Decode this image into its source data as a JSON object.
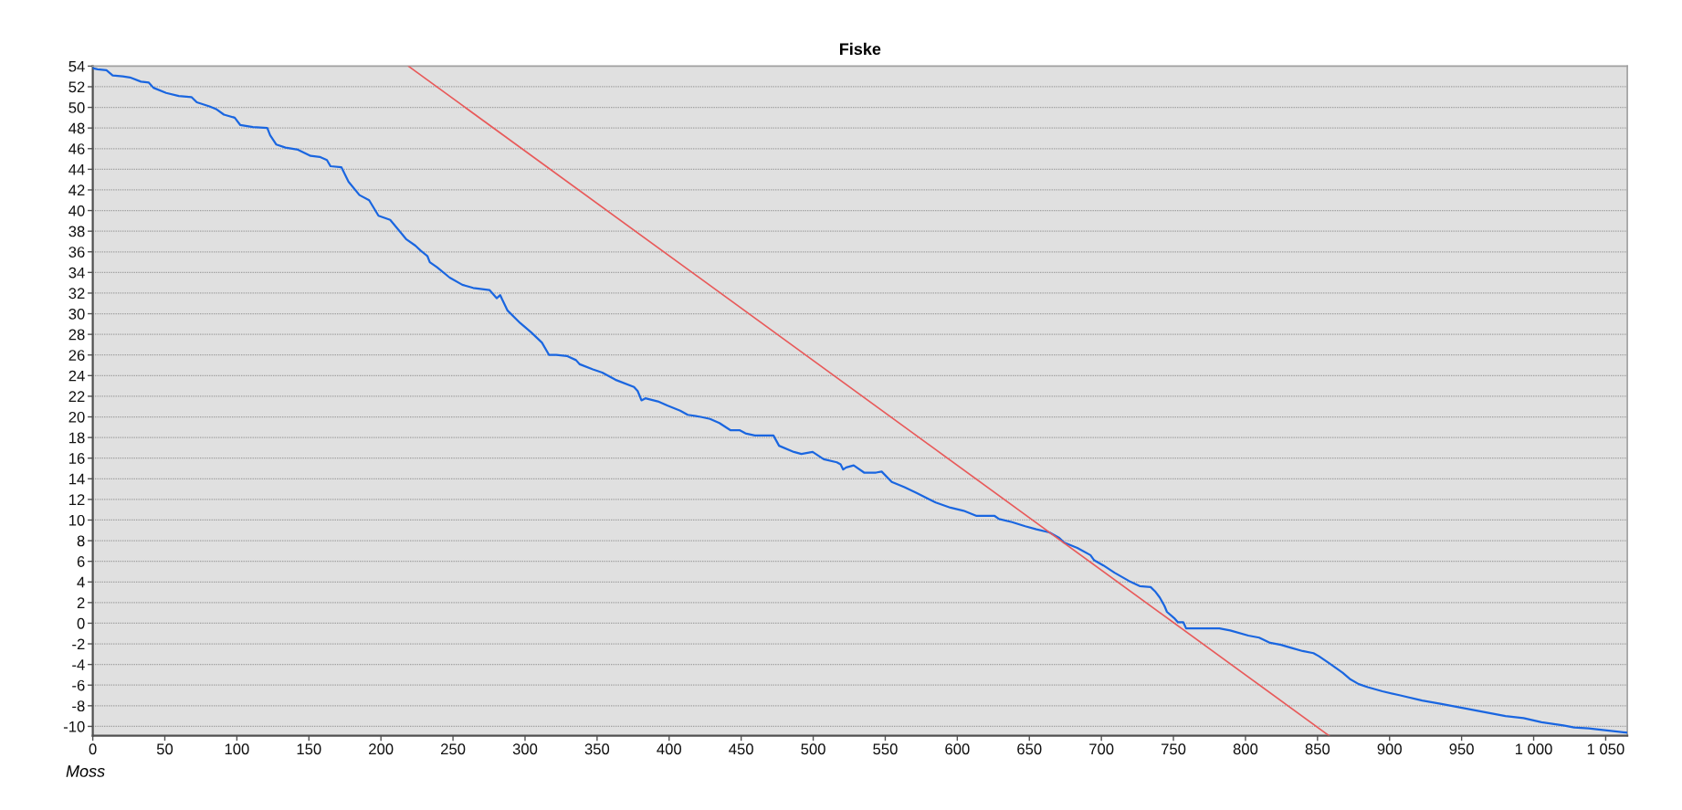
{
  "chart_data": {
    "type": "line",
    "title": "Fiske",
    "xlabel": "Moss",
    "xlim": [
      0,
      1065
    ],
    "xticks": [
      0,
      50,
      100,
      150,
      200,
      250,
      300,
      350,
      400,
      450,
      500,
      550,
      600,
      650,
      700,
      750,
      800,
      850,
      900,
      950,
      {
        "value": 1000,
        "label": "1 000"
      },
      {
        "value": 1050,
        "label": "1 050"
      }
    ],
    "ylim": [
      -10.9,
      54
    ],
    "yticks": [
      -10,
      -8,
      -6,
      -4,
      -2,
      0,
      2,
      4,
      6,
      8,
      10,
      12,
      14,
      16,
      18,
      20,
      22,
      24,
      26,
      28,
      30,
      32,
      34,
      36,
      38,
      40,
      42,
      44,
      46,
      48,
      50,
      52,
      54
    ],
    "grid": "y",
    "series": [
      {
        "color": "#1a66e0",
        "x": [
          0,
          3.3,
          9.5,
          13.8,
          20.8,
          25.8,
          33.4,
          38.9,
          42.1,
          50.9,
          59.7,
          68.5,
          72.2,
          81,
          86,
          91,
          98.5,
          102.3,
          111.1,
          121.1,
          123.1,
          127.4,
          133.7,
          142.4,
          151.2,
          157.5,
          162.5,
          165,
          172.5,
          177.5,
          185.1,
          191.8,
          198.3,
          206.4,
          217.7,
          223.9,
          227.7,
          232.2,
          233.9,
          238.9,
          247.7,
          256.5,
          264,
          275.3,
          280.3,
          282.8,
          284.1,
          287.9,
          296.6,
          304.2,
          311.7,
          316.7,
          321.7,
          329,
          335.4,
          338,
          347.1,
          353.6,
          362.7,
          375.6,
          378.2,
          380.8,
          383.5,
          392.2,
          398.7,
          407.7,
          412.9,
          421.9,
          428.4,
          434.9,
          442.7,
          449.1,
          453,
          459.5,
          472.4,
          476.3,
          486.6,
          491.8,
          499.6,
          507.3,
          516.4,
          519,
          520.8,
          522.9,
          528.1,
          535.3,
          543.6,
          547.5,
          554.5,
          563,
          572,
          585,
          595.3,
          604.4,
          613.4,
          625.9,
          629,
          638,
          647.1,
          654.9,
          663.9,
          670.4,
          674.3,
          683.3,
          692.4,
          695,
          701.4,
          709.1,
          719.1,
          726.6,
          734.2,
          737.2,
          740.5,
          743.7,
          745.5,
          750.5,
          753,
          756.8,
          758.8,
          781.9,
          789.4,
          802,
          809.5,
          817.1,
          824.6,
          832.2,
          839.7,
          847.2,
          851,
          857.3,
          867.4,
          872.4,
          878.6,
          884.9,
          895,
          907.5,
          922.6,
          935.2,
          950.3,
          965.3,
          980.4,
          993,
          1005.5,
          1020.6,
          1028.1,
          1038.2,
          1050.8,
          1064.6
        ],
        "values": [
          53.8,
          53.7,
          53.6,
          53.1,
          53.0,
          52.9,
          52.5,
          52.4,
          51.9,
          51.4,
          51.1,
          51.0,
          50.5,
          50.1,
          49.8,
          49.3,
          49.0,
          48.3,
          48.1,
          48,
          47.3,
          46.4,
          46.1,
          45.9,
          45.3,
          45.2,
          44.9,
          44.3,
          44.2,
          42.8,
          41.5,
          41,
          39.5,
          39.1,
          37.2,
          36.6,
          36.1,
          35.6,
          35.0,
          34.5,
          33.5,
          32.8,
          32.5,
          32.3,
          31.5,
          31.8,
          31.4,
          30.3,
          29.1,
          28.2,
          27.2,
          26,
          26,
          25.9,
          25.5,
          25.1,
          24.6,
          24.3,
          23.6,
          22.9,
          22.5,
          21.6,
          21.8,
          21.5,
          21.1,
          20.6,
          20.2,
          20,
          19.8,
          19.4,
          18.7,
          18.7,
          18.4,
          18.2,
          18.2,
          17.2,
          16.6,
          16.4,
          16.6,
          15.9,
          15.6,
          15.4,
          14.9,
          15.1,
          15.3,
          14.6,
          14.6,
          14.7,
          13.7,
          13.2,
          12.6,
          11.7,
          11.2,
          10.9,
          10.4,
          10.4,
          10.1,
          9.8,
          9.4,
          9.1,
          8.8,
          8.3,
          7.8,
          7.3,
          6.6,
          6.1,
          5.6,
          4.9,
          4.1,
          3.6,
          3.5,
          3.1,
          2.5,
          1.7,
          1.1,
          0.5,
          0.1,
          0.1,
          -0.5,
          -0.5,
          -0.7,
          -1.2,
          -1.4,
          -1.9,
          -2.1,
          -2.4,
          -2.7,
          -2.9,
          -3.2,
          -3.8,
          -4.8,
          -5.4,
          -5.9,
          -6.2,
          -6.6,
          -7.0,
          -7.5,
          -7.8,
          -8.2,
          -8.6,
          -9.0,
          -9.2,
          -9.6,
          -9.9,
          -10.1,
          -10.2,
          -10.4,
          -10.6
        ]
      },
      {
        "type": "line",
        "color": "#e85a5a",
        "x": [
          219,
          858
        ],
        "values": [
          54,
          -10.9
        ]
      }
    ]
  }
}
